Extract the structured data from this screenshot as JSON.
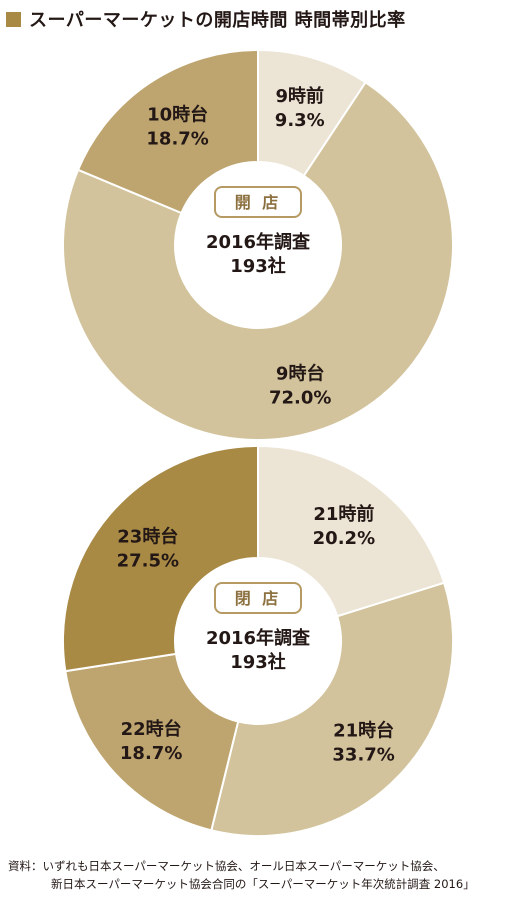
{
  "header": {
    "title": "スーパーマーケットの開店時間 時間帯別比率"
  },
  "chart_data": [
    {
      "type": "pie",
      "badge": "開 店",
      "center_line1": "2016年調査",
      "center_line2": "193社",
      "categories": [
        "9時前",
        "9時台",
        "10時台"
      ],
      "values": [
        9.3,
        72.0,
        18.7
      ],
      "value_labels": [
        "9.3%",
        "72.0%",
        "18.7%"
      ],
      "colors": [
        "#ece4d4",
        "#d2c39c",
        "#bea570"
      ]
    },
    {
      "type": "pie",
      "badge": "閉 店",
      "center_line1": "2016年調査",
      "center_line2": "193社",
      "categories": [
        "21時前",
        "21時台",
        "22時台",
        "23時台"
      ],
      "values": [
        20.2,
        33.7,
        18.7,
        27.5
      ],
      "value_labels": [
        "20.2%",
        "33.7%",
        "18.7%",
        "27.5%"
      ],
      "colors": [
        "#ece4d4",
        "#d2c39c",
        "#bea570",
        "#a88a45"
      ]
    }
  ],
  "footer": {
    "source_line1": "資料：いずれも日本スーパーマーケット協会、オール日本スーパーマーケット協会、",
    "source_line2": "新日本スーパーマーケット協会合同の「スーパーマーケット年次統計調査 2016」"
  }
}
